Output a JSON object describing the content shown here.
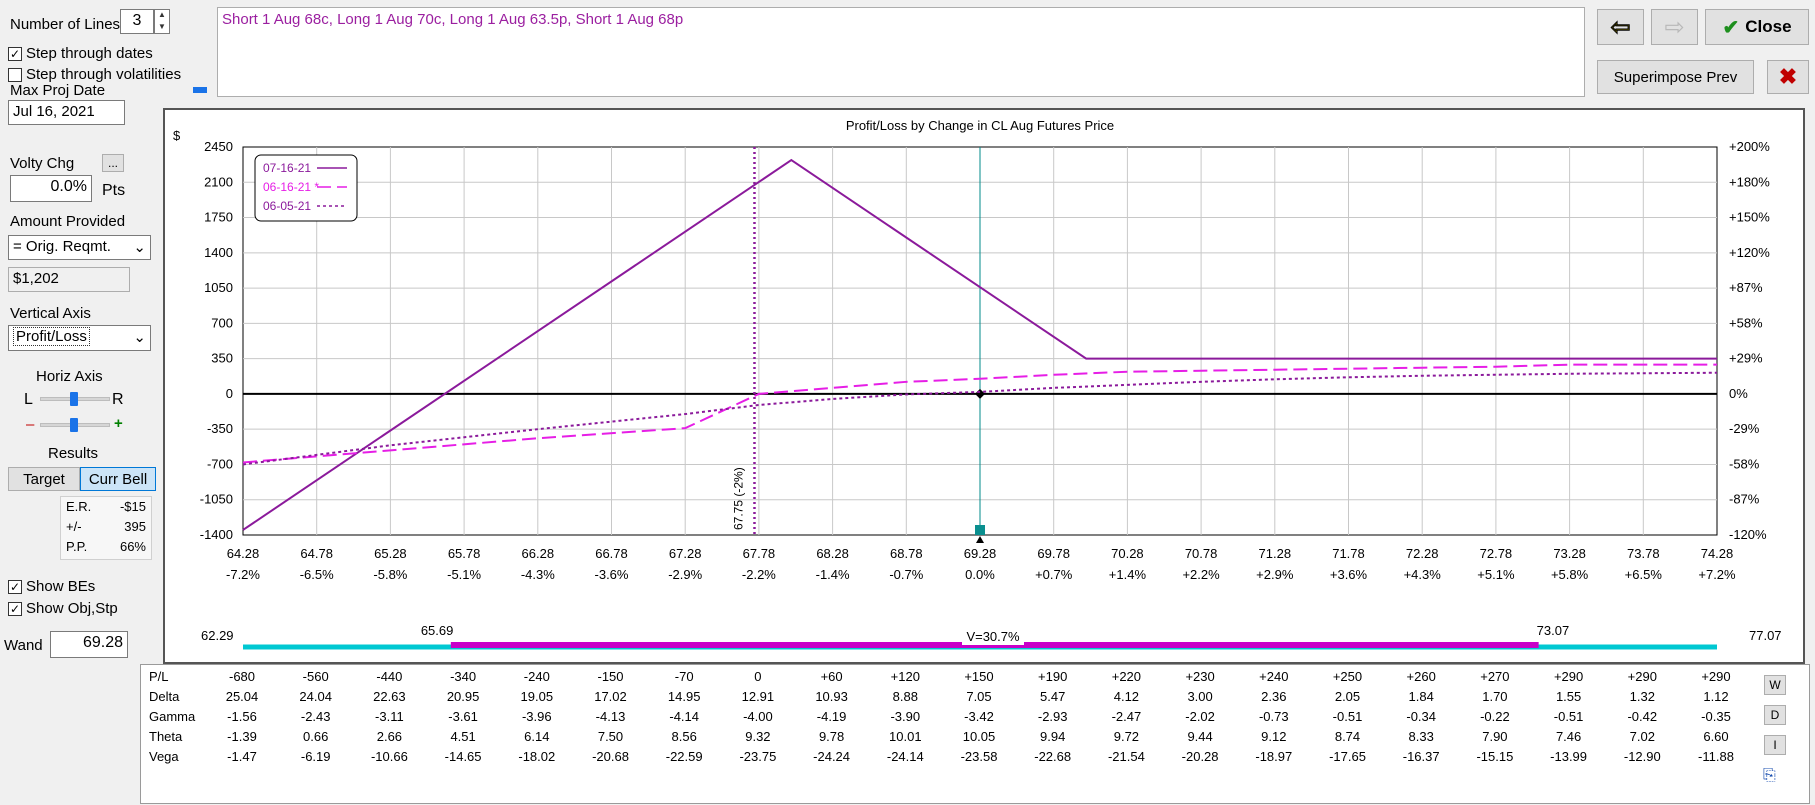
{
  "controls": {
    "num_lines_label": "Number of Lines",
    "num_lines_value": "3",
    "step_dates_label": "Step through dates",
    "step_dates_checked": true,
    "step_vols_label": "Step through volatilities",
    "step_vols_checked": false,
    "max_proj_date_label": "Max Proj Date",
    "max_proj_date_value": "Jul 16, 2021",
    "volty_chg_label": "Volty Chg",
    "volty_chg_button": "...",
    "volty_chg_value": "0.0%",
    "volty_chg_unit": "Pts",
    "amount_provided_label": "Amount Provided",
    "amount_provided_option": "= Orig. Reqmt.",
    "amount_value": "$1,202",
    "vertical_axis_label": "Vertical Axis",
    "vertical_axis_option": "Profit/Loss",
    "horiz_axis_label": "Horiz Axis",
    "horiz_left": "L",
    "horiz_right": "R",
    "minus_label": "–",
    "plus_label": "+",
    "results_label": "Results",
    "target_button": "Target",
    "curr_bell_button": "Curr Bell",
    "results": [
      {
        "k": "E.R.",
        "v": "-$15"
      },
      {
        "k": "+/-",
        "v": "395"
      },
      {
        "k": "P.P.",
        "v": "66%"
      }
    ],
    "show_bes_label": "Show BEs",
    "show_bes_checked": true,
    "show_obj_label": "Show Obj,Stp",
    "show_obj_checked": true,
    "wand_label": "Wand",
    "wand_value": "69.28"
  },
  "position_text": "Short 1 Aug 68c, Long 1 Aug 70c, Long 1 Aug 63.5p, Short 1 Aug 68p",
  "toolbar": {
    "close_label": "Close",
    "superimpose_label": "Superimpose Prev"
  },
  "chart_data": {
    "type": "line",
    "title": "Profit/Loss by Change in CL Aug Futures Price",
    "ylabel": "$",
    "xlim": [
      64.28,
      74.28
    ],
    "ylim": [
      -1400,
      2450
    ],
    "x_ticks": [
      "64.28",
      "64.78",
      "65.28",
      "65.78",
      "66.28",
      "66.78",
      "67.28",
      "67.78",
      "68.28",
      "68.78",
      "69.28",
      "69.78",
      "70.28",
      "70.78",
      "71.28",
      "71.78",
      "72.28",
      "72.78",
      "73.28",
      "73.78",
      "74.28"
    ],
    "x_pct_ticks": [
      "-7.2%",
      "-6.5%",
      "-5.8%",
      "-5.1%",
      "-4.3%",
      "-3.6%",
      "-2.9%",
      "-2.2%",
      "-1.4%",
      "-0.7%",
      "0.0%",
      "+0.7%",
      "+1.4%",
      "+2.2%",
      "+2.9%",
      "+3.6%",
      "+4.3%",
      "+5.1%",
      "+5.8%",
      "+6.5%",
      "+7.2%"
    ],
    "y_ticks": [
      2450,
      2100,
      1750,
      1400,
      1050,
      700,
      350,
      0,
      -350,
      -700,
      -1050,
      -1400
    ],
    "y_pct_ticks": [
      "+200%",
      "+180%",
      "+150%",
      "+120%",
      "+87%",
      "+58%",
      "+29%",
      "0%",
      "-29%",
      "-58%",
      "-87%",
      "-120%"
    ],
    "series": [
      {
        "name": "07-16-21",
        "color": "#8b1a9b",
        "style": "solid",
        "x": [
          64.28,
          68.0,
          70.0,
          74.28
        ],
        "y": [
          -1350,
          2320,
          350,
          350
        ]
      },
      {
        "name": "06-16-21 *",
        "color": "#e61ee6",
        "style": "dashed",
        "x": [
          64.28,
          65.28,
          66.28,
          67.28,
          67.78,
          68.28,
          68.78,
          69.28,
          69.78,
          70.28,
          70.78,
          71.28,
          71.78,
          72.28,
          72.78,
          73.28,
          73.78,
          74.28
        ],
        "y": [
          -680,
          -560,
          -440,
          -340,
          0,
          60,
          120,
          150,
          190,
          220,
          230,
          240,
          250,
          260,
          270,
          290,
          290,
          290
        ]
      },
      {
        "name": "06-05-21",
        "color": "#8b1a9b",
        "style": "dotted",
        "x": [
          64.28,
          65.28,
          66.28,
          67.28,
          67.78,
          68.28,
          68.78,
          69.28,
          69.78,
          70.28,
          70.78,
          71.28,
          71.78,
          72.28,
          72.78,
          73.28,
          73.78,
          74.28
        ],
        "y": [
          -700,
          -510,
          -350,
          -200,
          -110,
          -50,
          -5,
          20,
          60,
          90,
          120,
          145,
          165,
          180,
          190,
          200,
          205,
          210
        ]
      }
    ],
    "breakeven_x": 67.75,
    "breakeven_label": "67.75 (-2%)",
    "wand_x": 69.28,
    "bell": {
      "low": "62.29",
      "one_sd_low": "65.69",
      "center_label": "V=30.7%",
      "one_sd_high": "73.07",
      "high": "77.07"
    }
  },
  "greeks": {
    "labels": [
      "P/L",
      "Delta",
      "Gamma",
      "Theta",
      "Vega"
    ],
    "rows": [
      [
        "-680",
        "-560",
        "-440",
        "-340",
        "-240",
        "-150",
        "-70",
        "0",
        "+60",
        "+120",
        "+150",
        "+190",
        "+220",
        "+230",
        "+240",
        "+250",
        "+260",
        "+270",
        "+290",
        "+290",
        "+290"
      ],
      [
        "25.04",
        "24.04",
        "22.63",
        "20.95",
        "19.05",
        "17.02",
        "14.95",
        "12.91",
        "10.93",
        "8.88",
        "7.05",
        "5.47",
        "4.12",
        "3.00",
        "2.36",
        "2.05",
        "1.84",
        "1.70",
        "1.55",
        "1.32",
        "1.12"
      ],
      [
        "-1.56",
        "-2.43",
        "-3.11",
        "-3.61",
        "-3.96",
        "-4.13",
        "-4.14",
        "-4.00",
        "-4.19",
        "-3.90",
        "-3.42",
        "-2.93",
        "-2.47",
        "-2.02",
        "-0.73",
        "-0.51",
        "-0.34",
        "-0.22",
        "-0.51",
        "-0.42",
        "-0.35"
      ],
      [
        "-1.39",
        "0.66",
        "2.66",
        "4.51",
        "6.14",
        "7.50",
        "8.56",
        "9.32",
        "9.78",
        "10.01",
        "10.05",
        "9.94",
        "9.72",
        "9.44",
        "9.12",
        "8.74",
        "8.33",
        "7.90",
        "7.46",
        "7.02",
        "6.60"
      ],
      [
        "-1.47",
        "-6.19",
        "-10.66",
        "-14.65",
        "-18.02",
        "-20.68",
        "-22.59",
        "-23.75",
        "-24.24",
        "-24.14",
        "-23.58",
        "-22.68",
        "-21.54",
        "-20.28",
        "-18.97",
        "-17.65",
        "-16.37",
        "-15.15",
        "-13.99",
        "-12.90",
        "-11.88"
      ]
    ],
    "side_buttons": [
      "W",
      "D",
      "I"
    ]
  }
}
